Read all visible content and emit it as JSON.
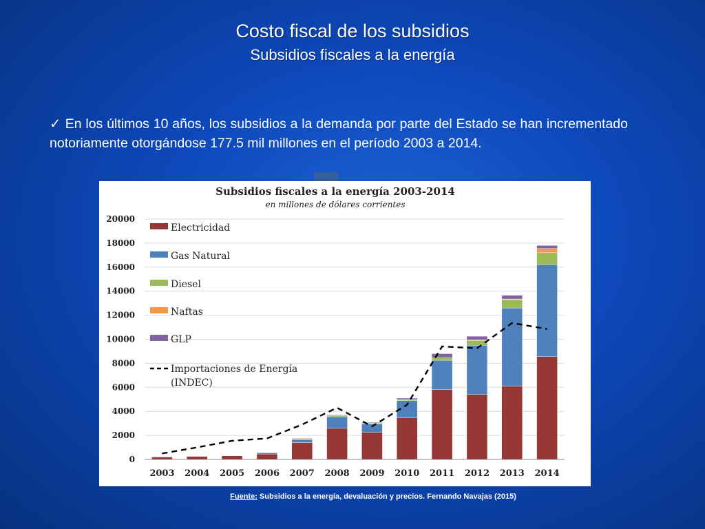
{
  "slide": {
    "title": "Costo fiscal de los subsidios",
    "subtitle": "Subsidios fiscales a la energía",
    "bullet_check": "✓",
    "bullet_text": "En los últimos 10 años, los subsidios a la demanda por parte del Estado se han incrementado notoriamente otorgándose 177.5 mil millones en el período 2003 a 2014.",
    "source_label": "Fuente:",
    "source_text": " Subsidios a la energía, devaluación y precios. Fernando Navajas (2015)"
  },
  "chart_data": {
    "type": "bar",
    "stacked": true,
    "title": "Subsidios fiscales a la energía 2003-2014",
    "subtitle": "en millones de dólares corrientes",
    "categories": [
      "2003",
      "2004",
      "2005",
      "2006",
      "2007",
      "2008",
      "2009",
      "2010",
      "2011",
      "2012",
      "2013",
      "2014"
    ],
    "ylim": [
      0,
      20000
    ],
    "yticks": [
      "0",
      "2000",
      "4000",
      "6000",
      "8000",
      "10000",
      "12000",
      "14000",
      "16000",
      "18000",
      "20000"
    ],
    "grid": true,
    "legend_position": "top-left",
    "series": [
      {
        "name": "Electricidad",
        "color": "#953735",
        "values": [
          200,
          250,
          300,
          450,
          1400,
          2600,
          2250,
          3450,
          5800,
          5400,
          6100,
          8550
        ]
      },
      {
        "name": "Gas Natural",
        "color": "#4f81bd",
        "values": [
          0,
          0,
          0,
          100,
          250,
          950,
          700,
          1450,
          2450,
          4100,
          6500,
          7650
        ]
      },
      {
        "name": "Diesel",
        "color": "#9bbb59",
        "values": [
          0,
          0,
          0,
          0,
          50,
          100,
          80,
          100,
          200,
          400,
          700,
          1000
        ]
      },
      {
        "name": "Naftas",
        "color": "#f79646",
        "values": [
          0,
          0,
          0,
          0,
          0,
          0,
          0,
          0,
          0,
          50,
          50,
          350
        ]
      },
      {
        "name": "GLP",
        "color": "#8064a2",
        "values": [
          0,
          0,
          0,
          0,
          50,
          50,
          50,
          100,
          350,
          300,
          300,
          250
        ]
      }
    ],
    "line": {
      "name": "Importaciones de Energía (INDEC)",
      "color": "#000000",
      "style": "dashed",
      "values": [
        500,
        1000,
        1550,
        1750,
        2900,
        4300,
        2750,
        4550,
        9400,
        9250,
        11350,
        10850
      ]
    }
  }
}
